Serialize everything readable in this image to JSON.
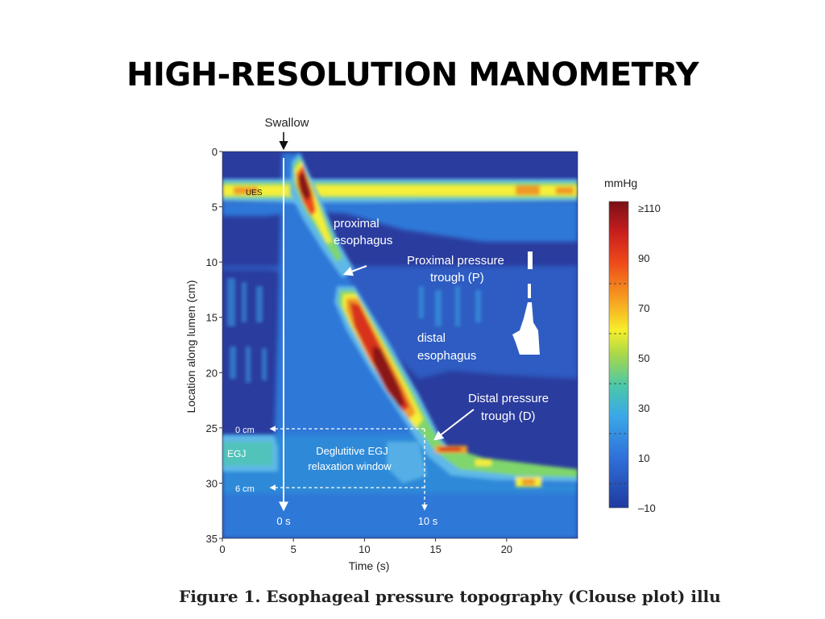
{
  "slide": {
    "title": "HIGH-RESOLUTION MANOMETRY",
    "caption_partial": "Figure 1. Esophageal pressure topography (Clouse plot) illu"
  },
  "plot": {
    "swallow_label": "Swallow",
    "x_axis": {
      "label": "Time (s)",
      "min": 0,
      "max": 25,
      "ticks": [
        0,
        5,
        10,
        15,
        20
      ]
    },
    "y_axis": {
      "label": "Location along lumen (cm)",
      "min": 0,
      "max": 35,
      "ticks": [
        0,
        5,
        10,
        15,
        20,
        25,
        30,
        35
      ]
    },
    "annotations": {
      "ues": "UES",
      "proximal_1": "proximal",
      "proximal_2": "esophagus",
      "prox_trough_1": "Proximal pressure",
      "prox_trough_2": "trough (P)",
      "distal_1": "distal",
      "distal_2": "esophagus",
      "dist_trough_1": "Distal pressure",
      "dist_trough_2": "trough (D)",
      "zero_cm": "0 cm",
      "six_cm": "6 cm",
      "egj": "EGJ",
      "window_1": "Deglutitive EGJ",
      "window_2": "relaxation window",
      "zero_s": "0 s",
      "ten_s": "10 s"
    },
    "colorbar": {
      "unit": "mmHg",
      "min": -10,
      "max": 110,
      "labels": [
        "≥110",
        "90",
        "70",
        "50",
        "30",
        "10",
        "–10"
      ],
      "colors": [
        "#7a0f17",
        "#c81e1e",
        "#ee4a1a",
        "#f6a020",
        "#f7ee2a",
        "#a8d84a",
        "#4cc8a8",
        "#3aa8e8",
        "#2f6fd8",
        "#1f3aa0"
      ]
    },
    "colors": {
      "background": "#2a3c9e",
      "lumen": "#2e78d8",
      "band_light": "#5fb8e8",
      "band_green": "#7fd66a",
      "band_yellow": "#f4ef38",
      "band_orange": "#f09a28",
      "band_red": "#d8301e",
      "band_darkred": "#8a1418",
      "annotation_text": "#ffffff"
    }
  }
}
